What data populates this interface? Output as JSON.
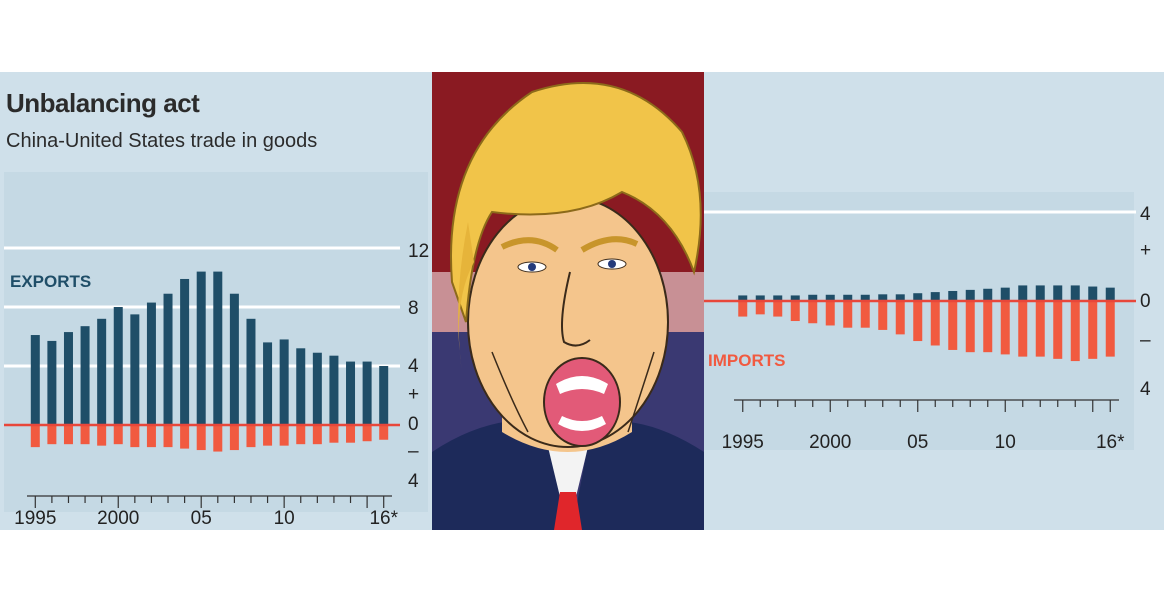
{
  "left_chart_header": {
    "title": "Unbalancing act",
    "subtitle": "China-United States trade in goods"
  },
  "colors": {
    "exports": "#1f4e68",
    "imports": "#f15a40",
    "zero_line": "#e8473a",
    "background": "#cfe0ea",
    "illustration_bg": "#8a1a22"
  },
  "chart_data": [
    {
      "type": "bar",
      "panel": "left",
      "title": "Unbalancing act",
      "subtitle": "China-United States trade in goods",
      "x": [
        1995,
        1996,
        1997,
        1998,
        1999,
        2000,
        2001,
        2002,
        2003,
        2004,
        2005,
        2006,
        2007,
        2008,
        2009,
        2010,
        2011,
        2012,
        2013,
        2014,
        2015,
        2016
      ],
      "series": [
        {
          "name": "EXPORTS",
          "values": [
            6.1,
            5.7,
            6.3,
            6.7,
            7.2,
            8.0,
            7.5,
            8.3,
            8.9,
            9.9,
            10.4,
            10.4,
            8.9,
            7.2,
            5.6,
            5.8,
            5.2,
            4.9,
            4.7,
            4.3,
            4.3,
            4.0
          ]
        },
        {
          "name": "IMPORTS",
          "values": [
            -1.5,
            -1.3,
            -1.3,
            -1.3,
            -1.4,
            -1.3,
            -1.5,
            -1.5,
            -1.5,
            -1.6,
            -1.7,
            -1.8,
            -1.7,
            -1.5,
            -1.4,
            -1.4,
            -1.3,
            -1.3,
            -1.2,
            -1.2,
            -1.1,
            -1.0
          ]
        }
      ],
      "series_label": "EXPORTS",
      "ylim": [
        -4,
        12
      ],
      "yticks": [
        "12",
        "8",
        "4",
        "+",
        "0",
        "–",
        "4"
      ],
      "xticks": [
        "1995",
        "2000",
        "05",
        "10",
        "16*"
      ]
    },
    {
      "type": "bar",
      "panel": "right",
      "x": [
        1995,
        1996,
        1997,
        1998,
        1999,
        2000,
        2001,
        2002,
        2003,
        2004,
        2005,
        2006,
        2007,
        2008,
        2009,
        2010,
        2011,
        2012,
        2013,
        2014,
        2015,
        2016
      ],
      "series": [
        {
          "name": "EXPORTS",
          "values": [
            0.25,
            0.25,
            0.25,
            0.25,
            0.28,
            0.28,
            0.28,
            0.28,
            0.3,
            0.3,
            0.35,
            0.4,
            0.45,
            0.5,
            0.55,
            0.6,
            0.7,
            0.7,
            0.7,
            0.7,
            0.65,
            0.6
          ]
        },
        {
          "name": "IMPORTS",
          "values": [
            -0.7,
            -0.6,
            -0.7,
            -0.9,
            -1.0,
            -1.1,
            -1.2,
            -1.2,
            -1.3,
            -1.5,
            -1.8,
            -2.0,
            -2.2,
            -2.3,
            -2.3,
            -2.4,
            -2.5,
            -2.5,
            -2.6,
            -2.7,
            -2.6,
            -2.5
          ]
        }
      ],
      "series_label": "IMPORTS",
      "ylim": [
        -4,
        4
      ],
      "yticks": [
        "4",
        "+",
        "0",
        "–",
        "4"
      ],
      "xticks": [
        "1995",
        "2000",
        "05",
        "10",
        "16*"
      ]
    }
  ]
}
